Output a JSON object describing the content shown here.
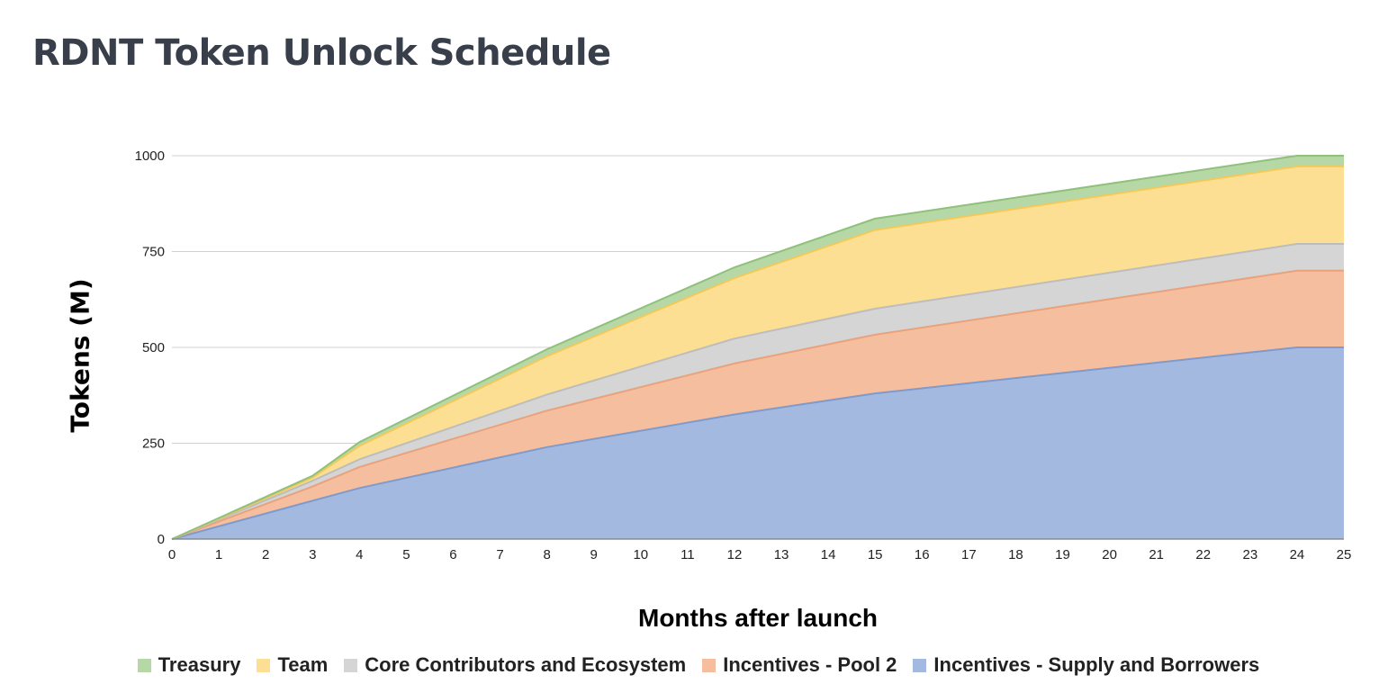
{
  "title": "RDNT Token Unlock Schedule",
  "chart_data": {
    "type": "area",
    "stacked": true,
    "title": "RDNT Token Unlock Schedule",
    "xlabel": "Months after launch",
    "ylabel": "Tokens (M)",
    "xlim": [
      0,
      25
    ],
    "ylim": [
      0,
      1000
    ],
    "y_ticks": [
      "0",
      "250",
      "500",
      "750",
      "1000"
    ],
    "x": [
      0,
      3,
      4,
      8,
      12,
      15,
      24,
      25
    ],
    "x_ticks": [
      "0",
      "1",
      "2",
      "3",
      "4",
      "5",
      "6",
      "7",
      "8",
      "9",
      "10",
      "11",
      "12",
      "13",
      "14",
      "15",
      "16",
      "17",
      "18",
      "19",
      "20",
      "21",
      "22",
      "23",
      "24",
      "25"
    ],
    "grid": true,
    "legend_position": "bottom",
    "series": [
      {
        "name": "Incentives - Supply and Borrowers",
        "color": "#a3b9e0",
        "line_color": "#7f9acb",
        "values": [
          0,
          100,
          133,
          240,
          325,
          380,
          500,
          500
        ]
      },
      {
        "name": "Incentives - Pool 2",
        "color": "#f5bf9f",
        "line_color": "#e9a27c",
        "values": [
          0,
          37,
          55,
          95,
          133,
          153,
          200,
          200
        ]
      },
      {
        "name": "Core Contributors and Ecosystem",
        "color": "#d5d5d5",
        "line_color": "#bdbdbd",
        "values": [
          0,
          15,
          20,
          42,
          65,
          68,
          70,
          70
        ]
      },
      {
        "name": "Team",
        "color": "#fddf93",
        "line_color": "#f2c95a",
        "values": [
          0,
          8,
          35,
          100,
          158,
          205,
          202,
          202
        ]
      },
      {
        "name": "Treasury",
        "color": "#b6d7a6",
        "line_color": "#8fc17a",
        "values": [
          0,
          5,
          10,
          18,
          28,
          30,
          28,
          28
        ]
      }
    ]
  }
}
